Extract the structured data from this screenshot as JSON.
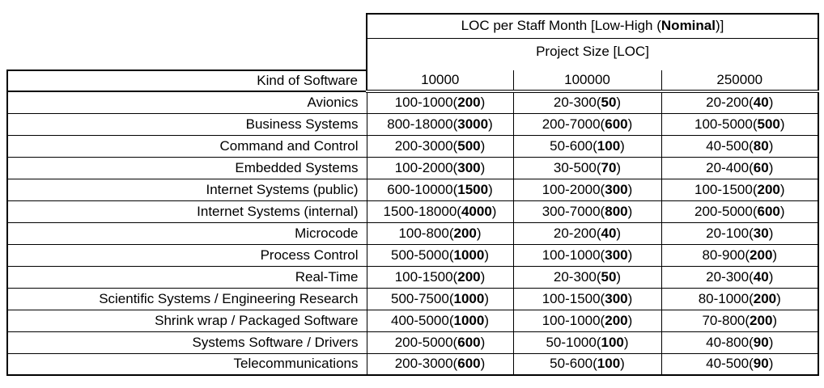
{
  "table": {
    "title": {
      "pre": "LOC per Staff Month [Low-High (",
      "bold": "Nominal",
      "post": ")]"
    },
    "subtitle": "Project Size [LOC]",
    "corner_header": "Kind of Software",
    "size_columns": [
      "10000",
      "100000",
      "250000"
    ],
    "rows": [
      {
        "kind": "Avionics",
        "cells": [
          {
            "pre": "100-1000(",
            "nominal": "200",
            "post": ")"
          },
          {
            "pre": "20-300(",
            "nominal": "50",
            "post": ")"
          },
          {
            "pre": "20-200(",
            "nominal": "40",
            "post": ")"
          }
        ]
      },
      {
        "kind": "Business Systems",
        "cells": [
          {
            "pre": "800-18000(",
            "nominal": "3000",
            "post": ")"
          },
          {
            "pre": "200-7000(",
            "nominal": "600",
            "post": ")"
          },
          {
            "pre": "100-5000(",
            "nominal": "500",
            "post": ")"
          }
        ]
      },
      {
        "kind": "Command and Control",
        "cells": [
          {
            "pre": "200-3000(",
            "nominal": "500",
            "post": ")"
          },
          {
            "pre": "50-600(",
            "nominal": "100",
            "post": ")"
          },
          {
            "pre": "40-500(",
            "nominal": "80",
            "post": ")"
          }
        ]
      },
      {
        "kind": "Embedded Systems",
        "cells": [
          {
            "pre": "100-2000(",
            "nominal": "300",
            "post": ")"
          },
          {
            "pre": "30-500(",
            "nominal": "70",
            "post": ")"
          },
          {
            "pre": "20-400(",
            "nominal": "60",
            "post": ")"
          }
        ]
      },
      {
        "kind": "Internet Systems (public)",
        "cells": [
          {
            "pre": "600-10000(",
            "nominal": "1500",
            "post": ")"
          },
          {
            "pre": "100-2000(",
            "nominal": "300",
            "post": ")"
          },
          {
            "pre": "100-1500(",
            "nominal": "200",
            "post": ")"
          }
        ]
      },
      {
        "kind": "Internet Systems (internal)",
        "cells": [
          {
            "pre": "1500-18000(",
            "nominal": "4000",
            "post": ")"
          },
          {
            "pre": "300-7000(",
            "nominal": "800",
            "post": ")"
          },
          {
            "pre": "200-5000(",
            "nominal": "600",
            "post": ")"
          }
        ]
      },
      {
        "kind": "Microcode",
        "cells": [
          {
            "pre": "100-800(",
            "nominal": "200",
            "post": ")"
          },
          {
            "pre": "20-200(",
            "nominal": "40",
            "post": ")"
          },
          {
            "pre": "20-100(",
            "nominal": "30",
            "post": ")"
          }
        ]
      },
      {
        "kind": "Process Control",
        "cells": [
          {
            "pre": "500-5000(",
            "nominal": "1000",
            "post": ")"
          },
          {
            "pre": "100-1000(",
            "nominal": "300",
            "post": ")"
          },
          {
            "pre": "80-900(",
            "nominal": "200",
            "post": ")"
          }
        ]
      },
      {
        "kind": "Real-Time",
        "cells": [
          {
            "pre": "100-1500(",
            "nominal": "200",
            "post": ")"
          },
          {
            "pre": "20-300(",
            "nominal": "50",
            "post": ")"
          },
          {
            "pre": "20-300(",
            "nominal": "40",
            "post": ")"
          }
        ]
      },
      {
        "kind": "Scientific Systems / Engineering Research",
        "cells": [
          {
            "pre": "500-7500(",
            "nominal": "1000",
            "post": ")"
          },
          {
            "pre": "100-1500(",
            "nominal": "300",
            "post": ")"
          },
          {
            "pre": "80-1000(",
            "nominal": "200",
            "post": ")"
          }
        ]
      },
      {
        "kind": "Shrink wrap / Packaged Software",
        "cells": [
          {
            "pre": "400-5000(",
            "nominal": "1000",
            "post": ")"
          },
          {
            "pre": "100-1000(",
            "nominal": "200",
            "post": ")"
          },
          {
            "pre": "70-800(",
            "nominal": "200",
            "post": ")"
          }
        ]
      },
      {
        "kind": "Systems Software / Drivers",
        "cells": [
          {
            "pre": "200-5000(",
            "nominal": "600",
            "post": ")"
          },
          {
            "pre": "50-1000(",
            "nominal": "100",
            "post": ")"
          },
          {
            "pre": "40-800(",
            "nominal": "90",
            "post": ")"
          }
        ]
      },
      {
        "kind": "Telecommunications",
        "cells": [
          {
            "pre": "200-3000(",
            "nominal": "600",
            "post": ")"
          },
          {
            "pre": "50-600(",
            "nominal": "100",
            "post": ")"
          },
          {
            "pre": "40-500(",
            "nominal": "90",
            "post": ")"
          }
        ]
      }
    ]
  }
}
